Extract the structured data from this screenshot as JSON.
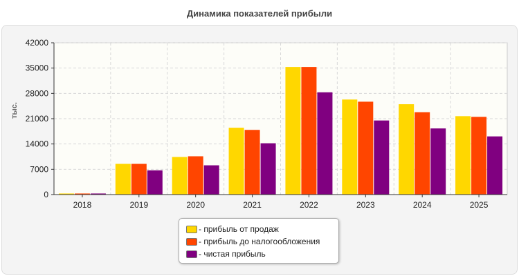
{
  "chart_data": {
    "type": "bar",
    "title": "Динамика показателей прибыли",
    "ylabel": "тыс.",
    "xlabel": "",
    "ylim": [
      0,
      42000
    ],
    "yticks": [
      0,
      7000,
      14000,
      21000,
      28000,
      35000,
      42000
    ],
    "categories": [
      "2018",
      "2019",
      "2020",
      "2021",
      "2022",
      "2023",
      "2024",
      "2025"
    ],
    "grid": true,
    "legend_position": "bottom-center",
    "series": [
      {
        "name": "прибыль от продаж",
        "color": "#FFD700",
        "values": [
          300,
          8500,
          10400,
          18500,
          35300,
          26300,
          25000,
          21700
        ]
      },
      {
        "name": "прибыль до налогообложения",
        "color": "#FF4500",
        "values": [
          300,
          8500,
          10600,
          17900,
          35300,
          25700,
          22800,
          21500
        ]
      },
      {
        "name": "чистая прибыль",
        "color": "#800080",
        "values": [
          300,
          6700,
          8100,
          14200,
          28300,
          20500,
          18300,
          16100
        ]
      }
    ]
  },
  "legend": {
    "items": [
      {
        "label": "- прибыль от продаж",
        "color": "#FFD700"
      },
      {
        "label": "- прибыль до налогообложения",
        "color": "#FF4500"
      },
      {
        "label": "- чистая прибыль",
        "color": "#800080"
      }
    ]
  }
}
